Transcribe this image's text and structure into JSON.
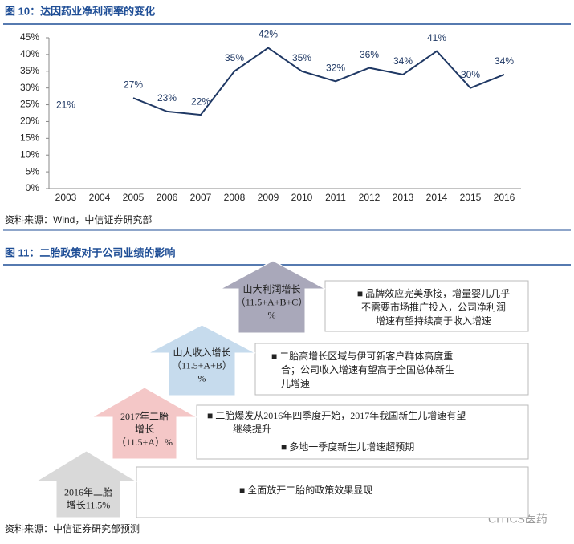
{
  "chart_data": {
    "type": "line",
    "title": "图 10：达因药业净利润率的变化",
    "categories": [
      "2003",
      "2004",
      "2005",
      "2006",
      "2007",
      "2008",
      "2009",
      "2010",
      "2011",
      "2012",
      "2013",
      "2014",
      "2015",
      "2016"
    ],
    "values": [
      21,
      null,
      27,
      23,
      22,
      35,
      42,
      35,
      32,
      36,
      34,
      41,
      30,
      34
    ],
    "value_labels": [
      "21%",
      null,
      "27%",
      "23%",
      "22%",
      "35%",
      "42%",
      "35%",
      "32%",
      "36%",
      "34%",
      "41%",
      "30%",
      "34%"
    ],
    "color": "#1f3864",
    "ylim": [
      0,
      45
    ],
    "yticks": [
      {
        "value": 0,
        "label": "0%"
      },
      {
        "value": 5,
        "label": "5%"
      },
      {
        "value": 10,
        "label": "10%"
      },
      {
        "value": 15,
        "label": "15%"
      },
      {
        "value": 20,
        "label": "20%"
      },
      {
        "value": 25,
        "label": "25%"
      },
      {
        "value": 30,
        "label": "30%"
      },
      {
        "value": 35,
        "label": "35%"
      },
      {
        "value": 40,
        "label": "40%"
      },
      {
        "value": 45,
        "label": "45%"
      }
    ],
    "grid": false
  },
  "source1": "资料来源：Wind，中信证券研究部",
  "figure11": {
    "title": "图 11：二胎政策对于公司业绩的影响",
    "steps": [
      {
        "label": [
          "2016年二胎",
          "增长11.5%"
        ],
        "bullets": [
          [
            "■ 全面放开二胎的政策效果显现"
          ]
        ]
      },
      {
        "label": [
          "2017年二胎",
          "增长",
          "（11.5+A）%"
        ],
        "bullets": [
          [
            "■ 二胎爆发从2016年四季度开始，2017年我国新生儿增速有望",
            "继续提升"
          ],
          [
            "■ 多地一季度新生儿增速超预期"
          ]
        ]
      },
      {
        "label": [
          "山大收入增长",
          "（11.5+A+B）",
          "%"
        ],
        "bullets": [
          [
            "■ 二胎高增长区域与伊可新客户群体高度重",
            "合；公司收入增速有望高于全国总体新生",
            "儿增速"
          ]
        ]
      },
      {
        "label": [
          "山大利润增长",
          "（11.5+A+B+C）",
          "%"
        ],
        "bullets": [
          [
            "■ 品牌效应完美承接，增量婴儿几乎",
            "不需要市场推广投入，公司净利润",
            "增速有望持续高于收入增速"
          ]
        ]
      }
    ]
  },
  "source2": "资料来源：中信证券研究部预测",
  "watermark": "CITICS医药"
}
